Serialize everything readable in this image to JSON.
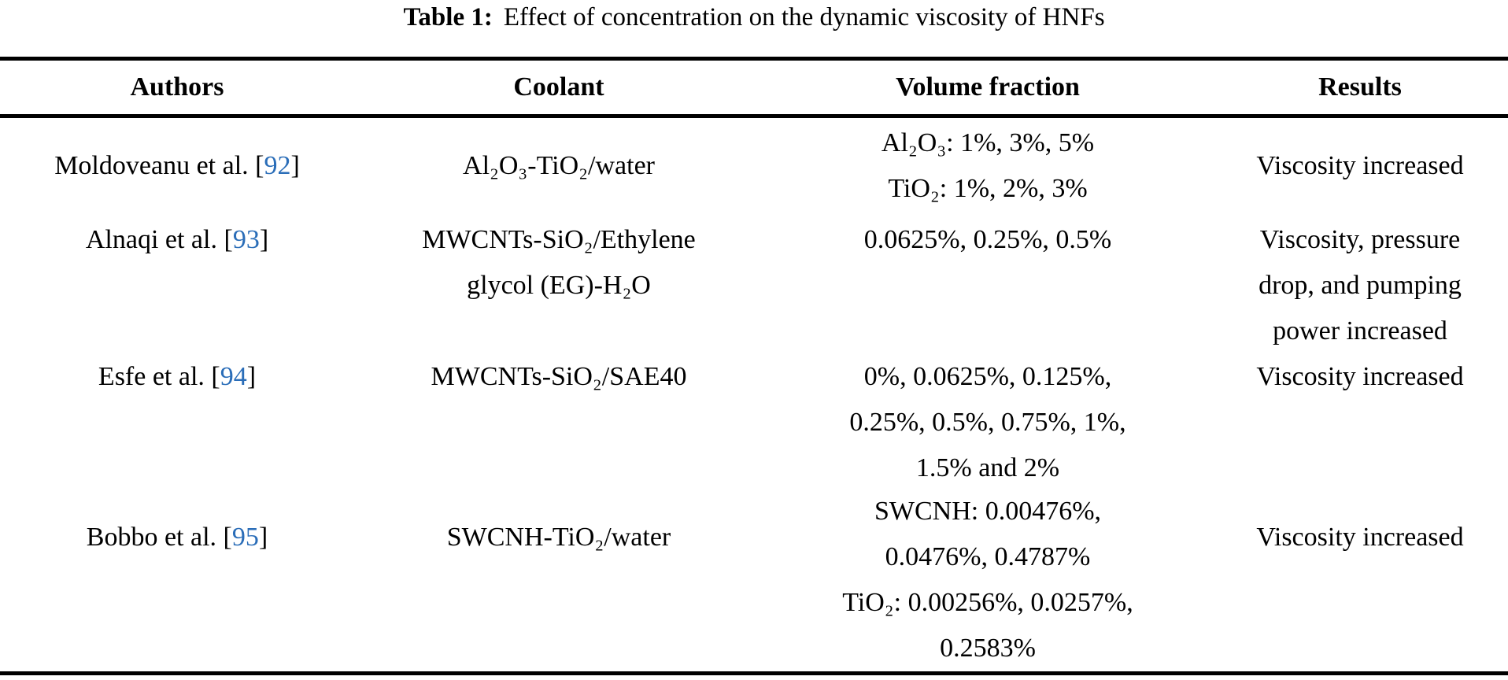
{
  "title": {
    "label": "Table 1:",
    "text": "Effect of concentration on the dynamic viscosity of HNFs"
  },
  "colors": {
    "background": "#ffffff",
    "text": "#000000",
    "rule": "#000000",
    "link": "#2a6db8"
  },
  "citation_brackets": {
    "open": "[",
    "close": "]"
  },
  "columns": [
    "Authors",
    "Coolant",
    "Volume fraction",
    "Results"
  ],
  "rows": [
    {
      "author": {
        "name": "Moldoveanu et al.",
        "ref": "92"
      },
      "coolant": [
        "Al₂O₃-TiO₂/water"
      ],
      "volume_fraction": [
        "Al₂O₃: 1%, 3%, 5%",
        "TiO₂: 1%, 2%, 3%"
      ],
      "results": [
        "Viscosity increased"
      ]
    },
    {
      "author": {
        "name": "Alnaqi et al.",
        "ref": "93"
      },
      "coolant": [
        "MWCNTs-SiO₂/Ethylene",
        "glycol (EG)-H₂O"
      ],
      "volume_fraction": [
        "0.0625%, 0.25%, 0.5%"
      ],
      "results": [
        "Viscosity, pressure",
        "drop, and pumping",
        "power increased"
      ]
    },
    {
      "author": {
        "name": "Esfe et al.",
        "ref": "94"
      },
      "coolant": [
        "MWCNTs-SiO₂/SAE40"
      ],
      "volume_fraction": [
        "0%, 0.0625%, 0.125%,",
        "0.25%, 0.5%, 0.75%, 1%,",
        "1.5% and 2%"
      ],
      "results": [
        "Viscosity increased"
      ]
    },
    {
      "author": {
        "name": "Bobbo et al.",
        "ref": "95"
      },
      "coolant": [
        "SWCNH-TiO₂/water"
      ],
      "volume_fraction": [
        "SWCNH: 0.00476%,",
        "0.0476%, 0.4787%",
        "TiO₂: 0.00256%, 0.0257%,",
        "0.2583%"
      ],
      "results": [
        "Viscosity increased"
      ]
    }
  ]
}
